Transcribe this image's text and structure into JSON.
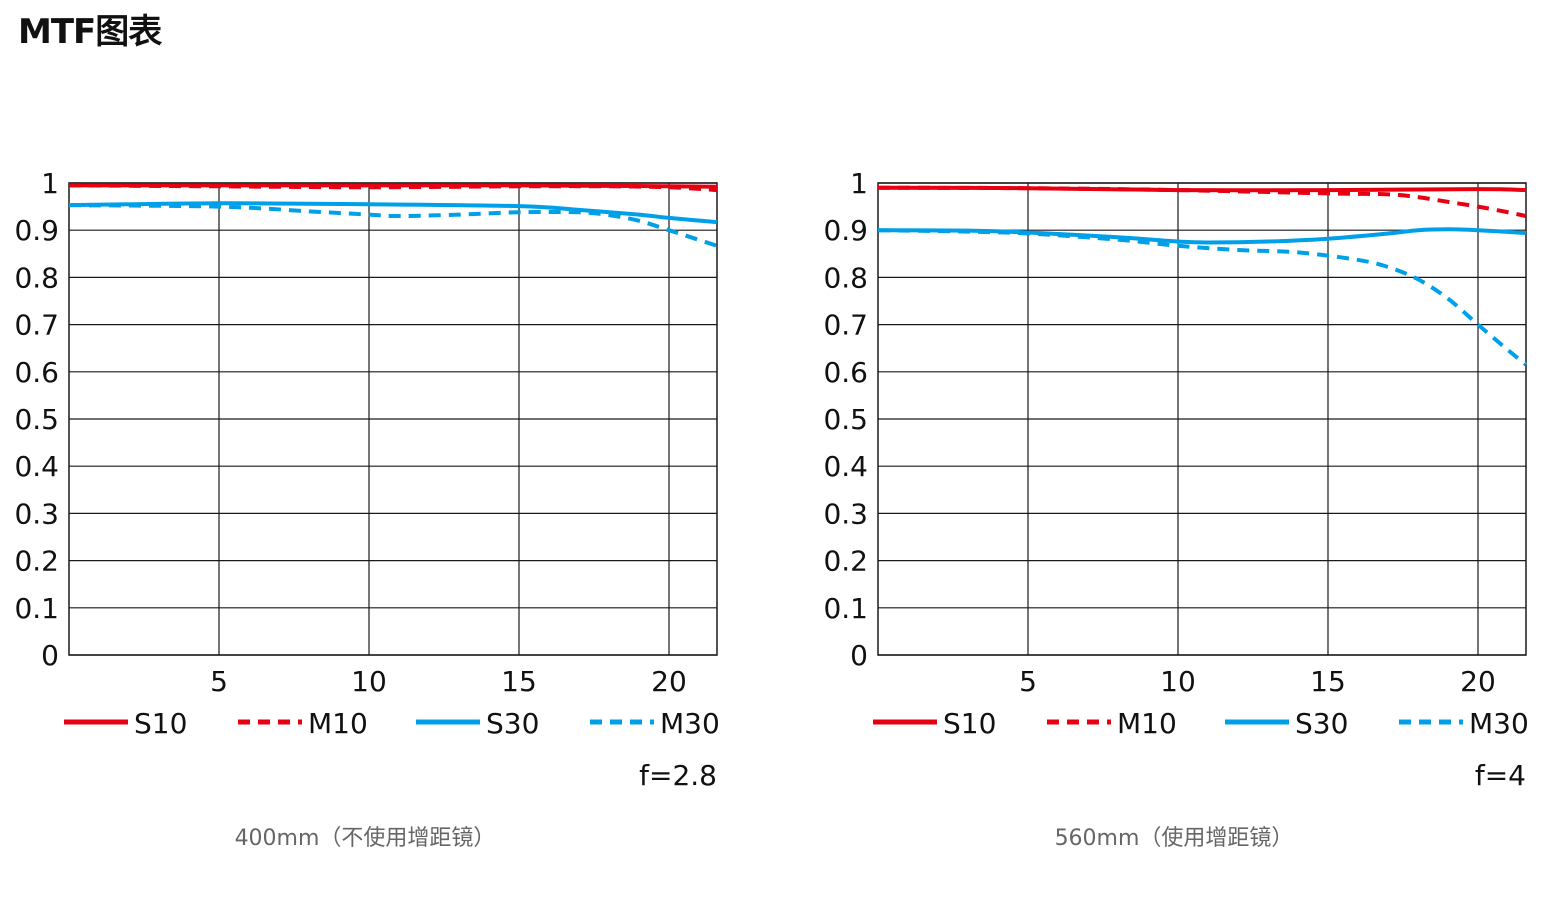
{
  "page": {
    "title": "MTF图表"
  },
  "styles": {
    "sagittal_color": "#e60012",
    "meridional_color": "#e60012",
    "blue_color": "#00a0e9",
    "grid_color": "#1a1a1a"
  },
  "chart_data": [
    {
      "type": "line",
      "caption": "400mm（不使用增距镜）",
      "aperture_label": "f=2.8",
      "xlim": [
        0,
        21.6
      ],
      "ylim": [
        0,
        1
      ],
      "x_ticks": [
        5,
        10,
        15,
        20
      ],
      "x_tick_labels": [
        "5",
        "10",
        "15",
        "20"
      ],
      "y_ticks": [
        0,
        0.1,
        0.2,
        0.3,
        0.4,
        0.5,
        0.6,
        0.7,
        0.8,
        0.9,
        1
      ],
      "y_tick_labels": [
        "0",
        "0.1",
        "0.2",
        "0.3",
        "0.4",
        "0.5",
        "0.6",
        "0.7",
        "0.8",
        "0.9",
        "1"
      ],
      "grid": true,
      "legend_position": "bottom",
      "series": [
        {
          "name": "S10",
          "color": "#e60012",
          "dash": false,
          "x": [
            0,
            5,
            10,
            15,
            18,
            20,
            21.6
          ],
          "y": [
            0.995,
            0.995,
            0.995,
            0.995,
            0.994,
            0.993,
            0.992
          ]
        },
        {
          "name": "M10",
          "color": "#e60012",
          "dash": true,
          "x": [
            0,
            5,
            10,
            15,
            18,
            20,
            21.6
          ],
          "y": [
            0.995,
            0.993,
            0.991,
            0.993,
            0.993,
            0.991,
            0.985
          ]
        },
        {
          "name": "S30",
          "color": "#00a0e9",
          "dash": false,
          "x": [
            0,
            5,
            10,
            15,
            17,
            19,
            20,
            21.6
          ],
          "y": [
            0.953,
            0.957,
            0.955,
            0.951,
            0.943,
            0.933,
            0.926,
            0.917
          ]
        },
        {
          "name": "M30",
          "color": "#00a0e9",
          "dash": true,
          "x": [
            0,
            5,
            8,
            10,
            11,
            13,
            15,
            17,
            18,
            19,
            20,
            21.6
          ],
          "y": [
            0.953,
            0.95,
            0.94,
            0.933,
            0.93,
            0.933,
            0.938,
            0.938,
            0.932,
            0.92,
            0.9,
            0.867
          ]
        }
      ]
    },
    {
      "type": "line",
      "caption": "560mm（使用增距镜）",
      "aperture_label": "f=4",
      "xlim": [
        0,
        21.6
      ],
      "ylim": [
        0,
        1
      ],
      "x_ticks": [
        5,
        10,
        15,
        20
      ],
      "x_tick_labels": [
        "5",
        "10",
        "15",
        "20"
      ],
      "y_ticks": [
        0,
        0.1,
        0.2,
        0.3,
        0.4,
        0.5,
        0.6,
        0.7,
        0.8,
        0.9,
        1
      ],
      "y_tick_labels": [
        "0",
        "0.1",
        "0.2",
        "0.3",
        "0.4",
        "0.5",
        "0.6",
        "0.7",
        "0.8",
        "0.9",
        "1"
      ],
      "grid": true,
      "legend_position": "bottom",
      "series": [
        {
          "name": "S10",
          "color": "#e60012",
          "dash": false,
          "x": [
            0,
            5,
            10,
            15,
            20,
            21.6
          ],
          "y": [
            0.99,
            0.989,
            0.985,
            0.985,
            0.987,
            0.985
          ]
        },
        {
          "name": "M10",
          "color": "#e60012",
          "dash": true,
          "x": [
            0,
            5,
            10,
            15,
            17,
            18,
            19,
            20,
            21,
            21.6
          ],
          "y": [
            0.99,
            0.989,
            0.985,
            0.978,
            0.976,
            0.97,
            0.96,
            0.95,
            0.938,
            0.93
          ]
        },
        {
          "name": "S30",
          "color": "#00a0e9",
          "dash": false,
          "x": [
            0,
            3,
            5,
            8,
            10,
            11,
            13,
            15,
            17,
            18,
            19,
            20,
            21.6
          ],
          "y": [
            0.9,
            0.899,
            0.895,
            0.885,
            0.876,
            0.874,
            0.876,
            0.882,
            0.893,
            0.9,
            0.902,
            0.9,
            0.894
          ]
        },
        {
          "name": "M30",
          "color": "#00a0e9",
          "dash": true,
          "x": [
            0,
            3,
            5,
            8,
            10,
            12,
            14,
            16,
            17,
            18,
            19,
            20,
            21,
            21.6
          ],
          "y": [
            0.9,
            0.897,
            0.893,
            0.88,
            0.867,
            0.858,
            0.853,
            0.837,
            0.822,
            0.796,
            0.755,
            0.7,
            0.646,
            0.615
          ]
        }
      ]
    }
  ]
}
